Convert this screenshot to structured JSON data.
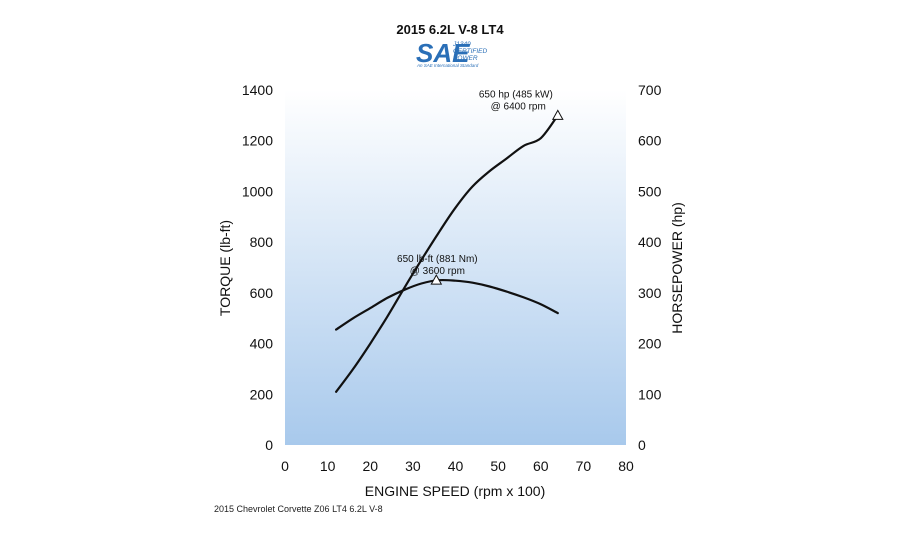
{
  "logo": {
    "mark": "SAE",
    "line1": "J1349",
    "line2": "CERTIFIED",
    "line3": "POWER",
    "line4": "An SAE International Standard",
    "color": "#2a6fb7"
  },
  "footnote": "2015 Chevrolet Corvette Z06 LT4 6.2L V-8",
  "chart_data": {
    "type": "line",
    "title": "2015 6.2L V-8 LT4",
    "xlabel": "ENGINE SPEED (rpm x 100)",
    "ylabel": "TORQUE (lb-ft)",
    "y2label": "HORSEPOWER (hp)",
    "xlim": [
      0,
      80
    ],
    "ylim": [
      0,
      1400
    ],
    "y2lim": [
      0,
      700
    ],
    "xticks": [
      0,
      10,
      20,
      30,
      40,
      50,
      60,
      70,
      80
    ],
    "yticks": [
      0,
      200,
      400,
      600,
      800,
      1000,
      1200,
      1400
    ],
    "y2ticks": [
      0,
      100,
      200,
      300,
      400,
      500,
      600,
      700
    ],
    "grid": false,
    "series": [
      {
        "axis": "left",
        "x": [
          12,
          16,
          20,
          24,
          28,
          32,
          36,
          40,
          44,
          48,
          52,
          56,
          60,
          64
        ],
        "values": [
          455,
          500,
          540,
          580,
          612,
          637,
          650,
          648,
          640,
          625,
          605,
          582,
          555,
          520
        ]
      },
      {
        "axis": "right",
        "x": [
          12,
          16,
          20,
          24,
          28,
          32,
          36,
          40,
          44,
          48,
          52,
          56,
          60,
          64
        ],
        "values": [
          105,
          150,
          200,
          253,
          310,
          365,
          418,
          468,
          510,
          540,
          565,
          590,
          605,
          650
        ]
      }
    ],
    "annotations": [
      {
        "x": 35.5,
        "y": 650,
        "axis": "left",
        "line1": "650 lb-ft (881 Nm)",
        "line2": "@ 3600 rpm"
      },
      {
        "x": 64,
        "y": 650,
        "axis": "right",
        "line1": "650 hp (485 kW)",
        "line2": "@ 6400 rpm"
      }
    ]
  }
}
